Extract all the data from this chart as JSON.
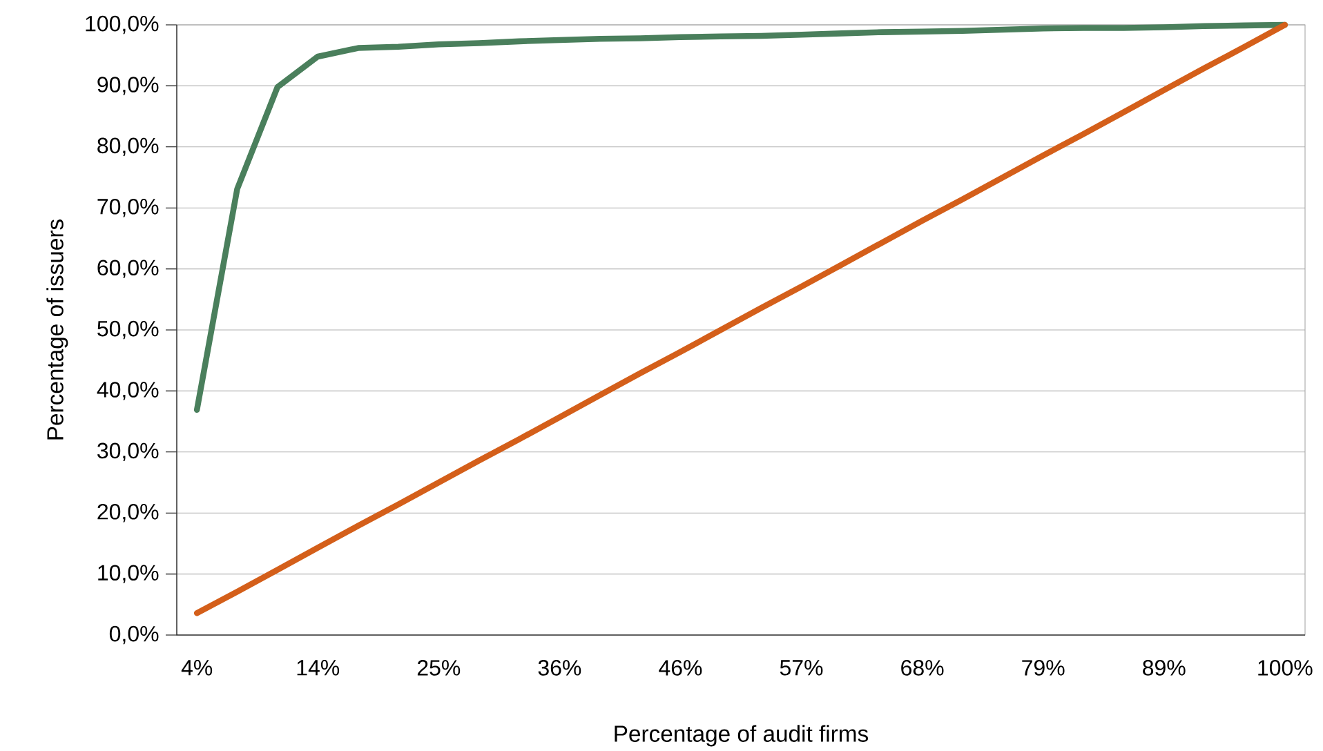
{
  "chart_data": {
    "type": "line",
    "xlabel": "Percentage of audit firms",
    "ylabel": "Percentage of issuers",
    "categories": [
      "4%",
      null,
      null,
      "14%",
      null,
      null,
      "25%",
      null,
      null,
      "36%",
      null,
      null,
      "46%",
      null,
      null,
      "57%",
      null,
      null,
      "68%",
      null,
      null,
      "79%",
      null,
      null,
      "89%",
      null,
      null,
      "100%"
    ],
    "series": [
      {
        "color": "#4a7f5c",
        "values": [
          36.9,
          73.1,
          89.8,
          94.8,
          96.2,
          96.4,
          96.8,
          97.0,
          97.3,
          97.5,
          97.7,
          97.8,
          98.0,
          98.1,
          98.2,
          98.4,
          98.6,
          98.8,
          98.9,
          99.0,
          99.2,
          99.4,
          99.5,
          99.5,
          99.6,
          99.8,
          99.9,
          100.0
        ]
      },
      {
        "color": "#d45f1a",
        "values": [
          3.6,
          7.1,
          10.7,
          14.3,
          17.9,
          21.4,
          25.0,
          28.6,
          32.1,
          35.7,
          39.3,
          42.9,
          46.4,
          50.0,
          53.6,
          57.1,
          60.7,
          64.3,
          67.9,
          71.4,
          75.0,
          78.6,
          82.1,
          85.7,
          89.3,
          92.9,
          96.4,
          100.0
        ]
      }
    ],
    "ylim": [
      0,
      100
    ],
    "yticks": [
      {
        "value": 0,
        "label": "0,0%"
      },
      {
        "value": 10,
        "label": "10,0%"
      },
      {
        "value": 20,
        "label": "20,0%"
      },
      {
        "value": 30,
        "label": "30,0%"
      },
      {
        "value": 40,
        "label": "40,0%"
      },
      {
        "value": 50,
        "label": "50,0%"
      },
      {
        "value": 60,
        "label": "60,0%"
      },
      {
        "value": 70,
        "label": "70,0%"
      },
      {
        "value": 80,
        "label": "80,0%"
      },
      {
        "value": 90,
        "label": "90,0%"
      },
      {
        "value": 100,
        "label": "100,0%"
      }
    ],
    "grid": "y",
    "marker": "none",
    "line_style": "solid"
  }
}
